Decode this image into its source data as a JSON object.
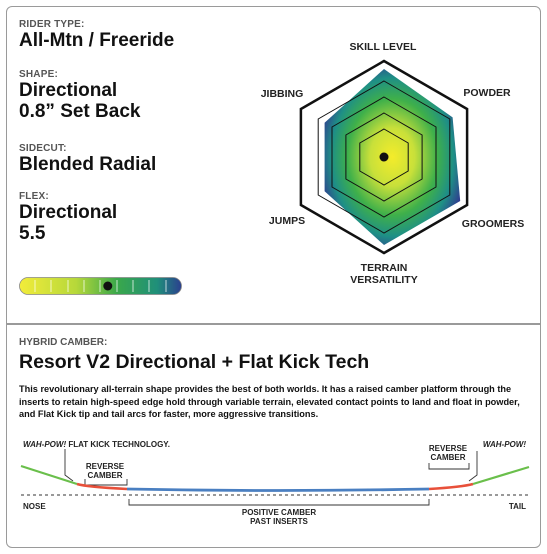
{
  "specs": {
    "rider_type": {
      "label": "RIDER TYPE:",
      "value": "All-Mtn / Freeride"
    },
    "shape": {
      "label": "SHAPE:",
      "line1": "Directional",
      "line2": "0.8” Set Back"
    },
    "sidecut": {
      "label": "SIDECUT:",
      "value": "Blended Radial"
    },
    "flex": {
      "label": "FLEX:",
      "line1": "Directional",
      "line2": "5.5",
      "level": 0.55
    }
  },
  "radar": {
    "labels": {
      "skill_level": "SKILL LEVEL",
      "powder": "POWDER",
      "groomers": "GROOMERS",
      "terrain_line1": "TERRAIN",
      "terrain_line2": "VERSATILITY",
      "jumps": "JUMPS",
      "jibbing": "JIBBING"
    },
    "values": {
      "skill_level": 1.0,
      "powder": 0.9,
      "groomers": 1.0,
      "terrain_versatility": 1.0,
      "jumps": 0.78,
      "jibbing": 0.78
    },
    "colors": {
      "center": "#f4ec2a",
      "edge": "#2f3f8f"
    }
  },
  "camber": {
    "label": "HYBRID CAMBER:",
    "title": "Resort V2 Directional + Flat Kick Tech",
    "description": "This revolutionary all-terrain shape provides the best of both worlds. It has a raised camber platform through the inserts to retain high-speed edge hold through variable terrain, elevated contact points to land and float in powder, and Flat Kick tip and tail arcs for faster, more aggressive transitions.",
    "wah_pow_left": "WAH-POW!",
    "flat_kick_text": " FLAT KICK TECHNOLOGY.",
    "wah_pow_right": "WAH-POW!",
    "reverse_left_1": "REVERSE",
    "reverse_left_2": "CAMBER",
    "reverse_right_1": "REVERSE",
    "reverse_right_2": "CAMBER",
    "nose": "NOSE",
    "tail": "TAIL",
    "positive_1": "POSITIVE CAMBER",
    "positive_2": "PAST INSERTS",
    "colors": {
      "kick": "#6abf4b",
      "reverse": "#e8503a",
      "positive": "#4a7fc1"
    }
  }
}
